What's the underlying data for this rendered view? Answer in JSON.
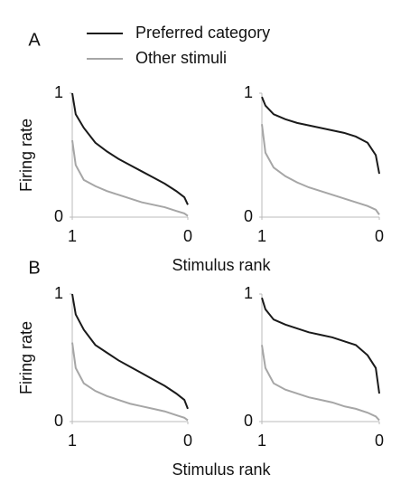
{
  "chart_data": [
    {
      "type": "line",
      "panel_label": "A",
      "ylabel": "Firing rate",
      "xlabel": "Stimulus rank",
      "x": [
        1,
        0.97,
        0.9,
        0.8,
        0.7,
        0.6,
        0.5,
        0.4,
        0.3,
        0.2,
        0.1,
        0.03,
        0
      ],
      "xlim": [
        1,
        0
      ],
      "xticks": [
        1,
        0
      ],
      "ylim": [
        0,
        1
      ],
      "yticks": [
        1,
        0
      ],
      "series": [
        {
          "name": "Preferred category",
          "color": "#1a1a1a",
          "values": [
            1.0,
            0.83,
            0.72,
            0.6,
            0.53,
            0.47,
            0.42,
            0.37,
            0.32,
            0.27,
            0.21,
            0.16,
            0.1
          ]
        },
        {
          "name": "Other stimuli",
          "color": "#a6a6a6",
          "values": [
            0.62,
            0.42,
            0.3,
            0.25,
            0.21,
            0.18,
            0.15,
            0.12,
            0.1,
            0.08,
            0.05,
            0.03,
            0.01
          ]
        }
      ]
    },
    {
      "type": "line",
      "x": [
        1,
        0.97,
        0.9,
        0.8,
        0.7,
        0.6,
        0.5,
        0.4,
        0.3,
        0.2,
        0.1,
        0.03,
        0
      ],
      "xlim": [
        1,
        0
      ],
      "xticks": [
        1,
        0
      ],
      "ylim": [
        0,
        1
      ],
      "yticks": [
        1,
        0
      ],
      "series": [
        {
          "color": "#1a1a1a",
          "values": [
            0.97,
            0.9,
            0.83,
            0.79,
            0.76,
            0.74,
            0.72,
            0.7,
            0.68,
            0.65,
            0.6,
            0.5,
            0.35
          ]
        },
        {
          "color": "#a6a6a6",
          "values": [
            0.75,
            0.52,
            0.4,
            0.33,
            0.28,
            0.24,
            0.21,
            0.18,
            0.15,
            0.12,
            0.09,
            0.06,
            0.02
          ]
        }
      ]
    },
    {
      "type": "line",
      "panel_label": "B",
      "ylabel": "Firing rate",
      "xlabel": "Stimulus rank",
      "x": [
        1,
        0.97,
        0.9,
        0.8,
        0.7,
        0.6,
        0.5,
        0.4,
        0.3,
        0.2,
        0.1,
        0.03,
        0
      ],
      "xlim": [
        1,
        0
      ],
      "xticks": [
        1,
        0
      ],
      "ylim": [
        0,
        1
      ],
      "yticks": [
        1,
        0
      ],
      "series": [
        {
          "color": "#1a1a1a",
          "values": [
            1.0,
            0.84,
            0.72,
            0.6,
            0.54,
            0.48,
            0.43,
            0.38,
            0.33,
            0.28,
            0.22,
            0.17,
            0.1
          ]
        },
        {
          "color": "#a6a6a6",
          "values": [
            0.62,
            0.42,
            0.3,
            0.24,
            0.2,
            0.17,
            0.14,
            0.12,
            0.1,
            0.08,
            0.05,
            0.03,
            0.01
          ]
        }
      ]
    },
    {
      "type": "line",
      "x": [
        1,
        0.97,
        0.9,
        0.8,
        0.7,
        0.6,
        0.5,
        0.4,
        0.3,
        0.2,
        0.1,
        0.03,
        0
      ],
      "xlim": [
        1,
        0
      ],
      "xticks": [
        1,
        0
      ],
      "ylim": [
        0,
        1
      ],
      "yticks": [
        1,
        0
      ],
      "series": [
        {
          "color": "#1a1a1a",
          "values": [
            0.97,
            0.88,
            0.8,
            0.76,
            0.73,
            0.7,
            0.68,
            0.66,
            0.63,
            0.6,
            0.52,
            0.42,
            0.22
          ]
        },
        {
          "color": "#a6a6a6",
          "values": [
            0.6,
            0.42,
            0.3,
            0.25,
            0.22,
            0.19,
            0.17,
            0.15,
            0.12,
            0.1,
            0.07,
            0.04,
            0.01
          ]
        }
      ]
    }
  ]
}
